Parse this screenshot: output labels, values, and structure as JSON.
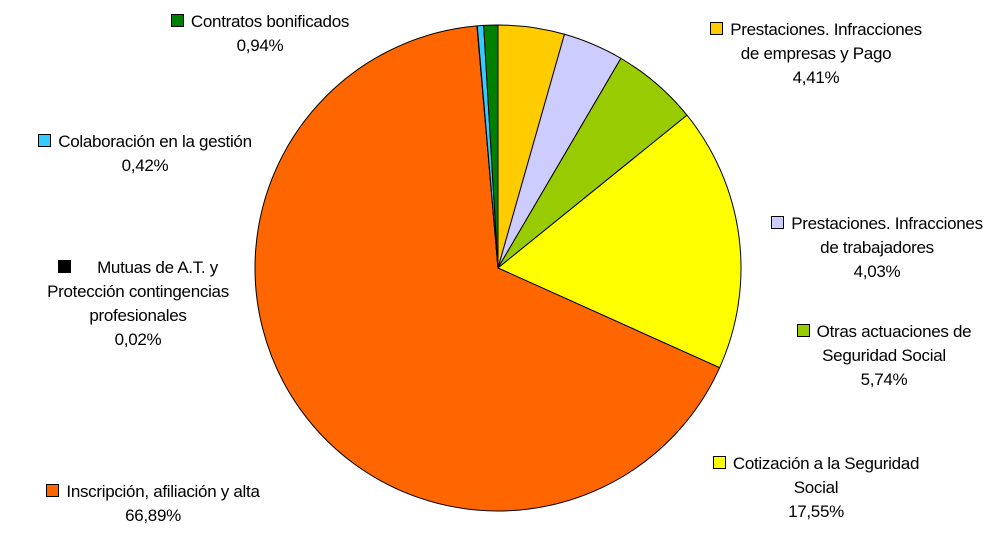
{
  "chart_data": {
    "type": "pie",
    "title": "",
    "legend_placement": "labels-around",
    "slices": [
      {
        "label_lines": [
          "Prestaciones. Infracciones",
          "de empresas y Pago"
        ],
        "value_label": "4,41%",
        "value": 4.41,
        "color": "#ffcc00"
      },
      {
        "label_lines": [
          "Prestaciones. Infracciones",
          "de trabajadores"
        ],
        "value_label": "4,03%",
        "value": 4.03,
        "color": "#ccccff"
      },
      {
        "label_lines": [
          "Otras actuaciones de",
          "Seguridad Social"
        ],
        "value_label": "5,74%",
        "value": 5.74,
        "color": "#99cc00"
      },
      {
        "label_lines": [
          "Cotización a la Seguridad",
          "Social"
        ],
        "value_label": "17,55%",
        "value": 17.55,
        "color": "#ffff00"
      },
      {
        "label_lines": [
          "Inscripción, afiliación y alta"
        ],
        "value_label": "66,89%",
        "value": 66.89,
        "color": "#ff6600"
      },
      {
        "label_lines": [
          "Mutuas de A.T. y",
          "Protección contingencias",
          "profesionales"
        ],
        "value_label": "0,02%",
        "value": 0.02,
        "color": "#000000"
      },
      {
        "label_lines": [
          "Colaboración en la gestión"
        ],
        "value_label": "0,42%",
        "value": 0.42,
        "color": "#33ccff"
      },
      {
        "label_lines": [
          "Contratos bonificados"
        ],
        "value_label": "0,94%",
        "value": 0.94,
        "color": "#008000"
      }
    ]
  }
}
